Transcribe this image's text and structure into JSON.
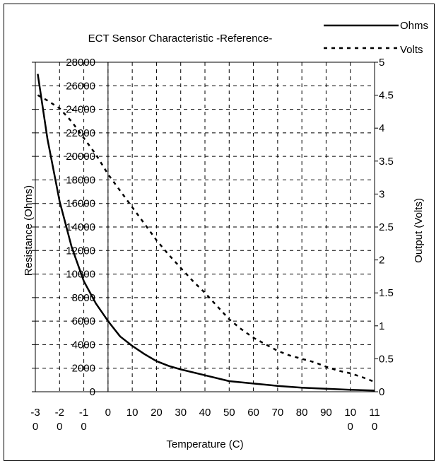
{
  "chart_data": {
    "type": "line",
    "title": "ECT Sensor Characteristic -Reference-",
    "xlabel": "Temperature (C)",
    "ylabel": "Resistance (Ohms)",
    "y2label": "Output (Volts)",
    "xlim": [
      -30,
      110
    ],
    "ylim": [
      0,
      28000
    ],
    "y2lim": [
      0,
      5
    ],
    "grid": true,
    "legend_position": "top-right",
    "x_ticks": [
      {
        "v": -30,
        "lines": [
          "-3",
          "0"
        ]
      },
      {
        "v": -20,
        "lines": [
          "-2",
          "0"
        ]
      },
      {
        "v": -10,
        "lines": [
          "-1",
          "0"
        ]
      },
      {
        "v": 0,
        "lines": [
          "0"
        ]
      },
      {
        "v": 10,
        "lines": [
          "10"
        ]
      },
      {
        "v": 20,
        "lines": [
          "20"
        ]
      },
      {
        "v": 30,
        "lines": [
          "30"
        ]
      },
      {
        "v": 40,
        "lines": [
          "40"
        ]
      },
      {
        "v": 50,
        "lines": [
          "50"
        ]
      },
      {
        "v": 60,
        "lines": [
          "60"
        ]
      },
      {
        "v": 70,
        "lines": [
          "70"
        ]
      },
      {
        "v": 80,
        "lines": [
          "80"
        ]
      },
      {
        "v": 90,
        "lines": [
          "90"
        ]
      },
      {
        "v": 100,
        "lines": [
          "10",
          "0"
        ]
      },
      {
        "v": 110,
        "lines": [
          "11",
          "0"
        ]
      }
    ],
    "y_ticks": [
      "0",
      "2000",
      "4000",
      "6000",
      "8000",
      "10000",
      "12000",
      "14000",
      "16000",
      "18000",
      "20000",
      "22000",
      "24000",
      "26000",
      "28000"
    ],
    "y2_ticks": [
      "0",
      "0.5",
      "1",
      "1.5",
      "2",
      "2.5",
      "3",
      "3.5",
      "4",
      "4.5",
      "5"
    ],
    "series": [
      {
        "name": "Ohms",
        "axis": "left",
        "style": "solid",
        "x": [
          -29,
          -25,
          -20,
          -15,
          -10,
          -5,
          0,
          5,
          10,
          15,
          20,
          25,
          30,
          40,
          50,
          60,
          70,
          80,
          90,
          100,
          110
        ],
        "y": [
          27000,
          21500,
          16200,
          12300,
          9400,
          7500,
          6000,
          4700,
          3900,
          3200,
          2600,
          2200,
          1900,
          1400,
          900,
          700,
          500,
          350,
          250,
          170,
          100
        ]
      },
      {
        "name": "Volts",
        "axis": "right",
        "style": "dashed",
        "x": [
          -29,
          -25,
          -20,
          -15,
          -10,
          -5,
          0,
          5,
          10,
          15,
          20,
          25,
          30,
          35,
          40,
          45,
          50,
          55,
          60,
          65,
          70,
          75,
          80,
          85,
          90,
          95,
          100,
          105,
          110
        ],
        "y": [
          4.5,
          4.42,
          4.3,
          4.1,
          3.85,
          3.6,
          3.3,
          3.05,
          2.8,
          2.55,
          2.3,
          2.08,
          1.88,
          1.68,
          1.5,
          1.3,
          1.1,
          0.95,
          0.82,
          0.72,
          0.62,
          0.55,
          0.5,
          0.45,
          0.38,
          0.32,
          0.28,
          0.22,
          0.15
        ]
      }
    ]
  }
}
